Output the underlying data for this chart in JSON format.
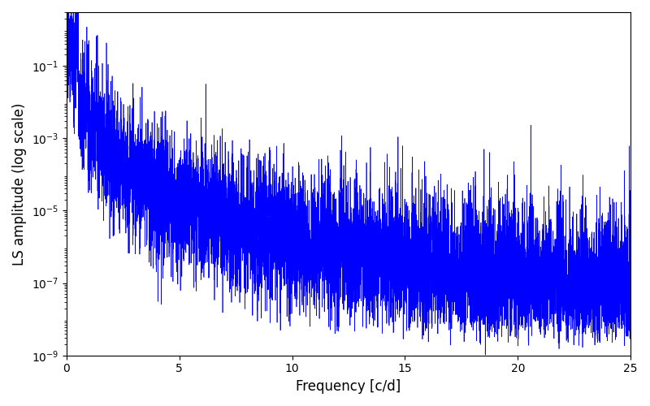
{
  "xlabel": "Frequency [c/d]",
  "ylabel": "LS amplitude (log scale)",
  "xlim": [
    0,
    25
  ],
  "ylim": [
    1e-09,
    3.0
  ],
  "line_color": "#0000ff",
  "line_width": 0.5,
  "figsize": [
    8.0,
    5.0
  ],
  "dpi": 100,
  "n_points": 8000,
  "freq_max": 25.0,
  "peak_freq": 0.45,
  "peak_amp": 0.85,
  "spectral_index": 3.5,
  "noise_floor_log": -8.5,
  "seed": 77
}
